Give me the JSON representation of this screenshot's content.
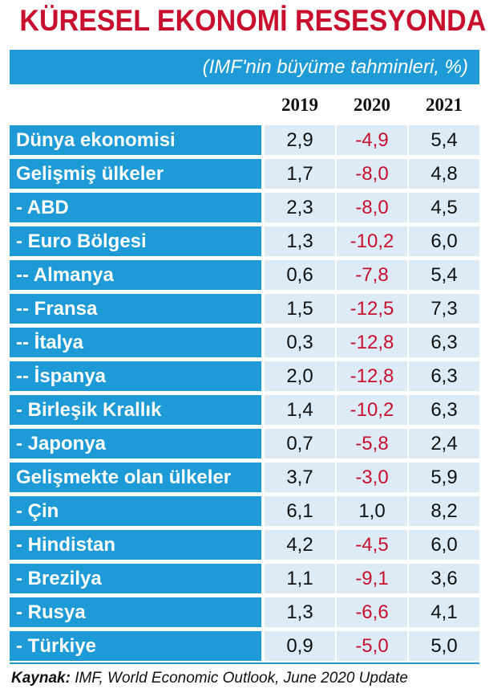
{
  "title": "KÜRESEL EKONOMİ RESESYONDA",
  "subtitle": "(IMF'nin büyüme tahminleri, %)",
  "source_label": "Kaynak:",
  "source_text": "IMF, World Economic Outlook, June 2020 Update",
  "colors": {
    "title": "#c8102e",
    "header_bg": "#1e9ad6",
    "cell_bg": "#dcebf6",
    "negative": "#c8102e"
  },
  "chart_data": {
    "type": "table",
    "columns": [
      "2019",
      "2020",
      "2021"
    ],
    "rows": [
      {
        "label": "Dünya ekonomisi",
        "values": [
          "2,9",
          "-4,9",
          "5,4"
        ]
      },
      {
        "label": "Gelişmiş ülkeler",
        "values": [
          "1,7",
          "-8,0",
          "4,8"
        ]
      },
      {
        "label": "- ABD",
        "values": [
          "2,3",
          "-8,0",
          "4,5"
        ]
      },
      {
        "label": "- Euro Bölgesi",
        "values": [
          "1,3",
          "-10,2",
          "6,0"
        ]
      },
      {
        "label": "-- Almanya",
        "values": [
          "0,6",
          "-7,8",
          "5,4"
        ]
      },
      {
        "label": "-- Fransa",
        "values": [
          "1,5",
          "-12,5",
          "7,3"
        ]
      },
      {
        "label": "-- İtalya",
        "values": [
          "0,3",
          "-12,8",
          "6,3"
        ]
      },
      {
        "label": "-- İspanya",
        "values": [
          "2,0",
          "-12,8",
          "6,3"
        ]
      },
      {
        "label": "- Birleşik Krallık",
        "values": [
          "1,4",
          "-10,2",
          "6,3"
        ]
      },
      {
        "label": "- Japonya",
        "values": [
          "0,7",
          "-5,8",
          "2,4"
        ]
      },
      {
        "label": "Gelişmekte olan ülkeler",
        "values": [
          "3,7",
          "-3,0",
          "5,9"
        ]
      },
      {
        "label": "- Çin",
        "values": [
          "6,1",
          "1,0",
          "8,2"
        ]
      },
      {
        "label": "- Hindistan",
        "values": [
          "4,2",
          "-4,5",
          "6,0"
        ]
      },
      {
        "label": "- Brezilya",
        "values": [
          "1,1",
          "-9,1",
          "3,6"
        ]
      },
      {
        "label": "- Rusya",
        "values": [
          "1,3",
          "-6,6",
          "4,1"
        ]
      },
      {
        "label": "- Türkiye",
        "values": [
          "0,9",
          "-5,0",
          "5,0"
        ]
      }
    ]
  }
}
